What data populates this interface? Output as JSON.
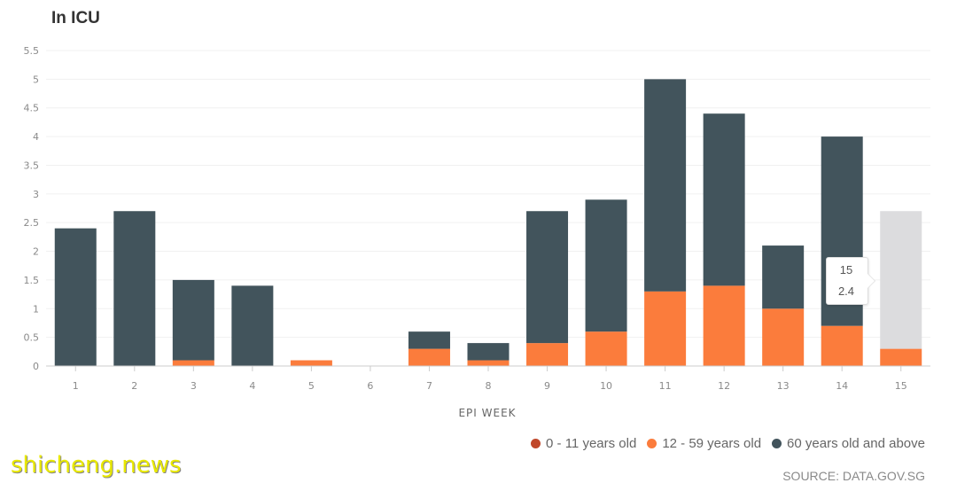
{
  "chart_data": {
    "type": "bar",
    "stacked": true,
    "title": "In ICU",
    "xlabel": "EPI WEEK",
    "ylabel": "",
    "ylim": [
      0,
      5.5
    ],
    "yticks": [
      0,
      0.5,
      1,
      1.5,
      2,
      2.5,
      3,
      3.5,
      4,
      4.5,
      5,
      5.5
    ],
    "ytick_labels": [
      "0",
      "0.5",
      "1",
      "1.5",
      "2",
      "2.5",
      "3",
      "3.5",
      "4",
      "4.5",
      "5",
      "5.5"
    ],
    "categories": [
      "1",
      "2",
      "3",
      "4",
      "5",
      "6",
      "7",
      "8",
      "9",
      "10",
      "11",
      "12",
      "13",
      "14",
      "15"
    ],
    "series": [
      {
        "name": "0 - 11 years old",
        "color": "#c0472a",
        "values": [
          0,
          0,
          0,
          0,
          0,
          0,
          0,
          0,
          0,
          0,
          0,
          0,
          0,
          0,
          0
        ]
      },
      {
        "name": "12 - 59 years old",
        "color": "#fb7c3c",
        "values": [
          0,
          0,
          0.1,
          0,
          0.1,
          0,
          0.3,
          0.1,
          0.4,
          0.6,
          1.3,
          1.4,
          1.0,
          0.7,
          0.3
        ]
      },
      {
        "name": "60 years old and above",
        "color": "#42545c",
        "values": [
          2.4,
          2.7,
          1.4,
          1.4,
          0,
          0,
          0.3,
          0.3,
          2.3,
          2.3,
          3.7,
          3.0,
          1.1,
          3.3,
          2.4
        ]
      }
    ],
    "highlight_category": "15",
    "highlight_color": "#dcdcde",
    "legend_position": "bottom-right",
    "grid": true
  },
  "tooltip": {
    "category": "15",
    "value": "2.4"
  },
  "source": "SOURCE: DATA.GOV.SG",
  "watermark": "shicheng.news",
  "colors": {
    "axis": "#cccccc",
    "grid": "#f0f0f0"
  }
}
